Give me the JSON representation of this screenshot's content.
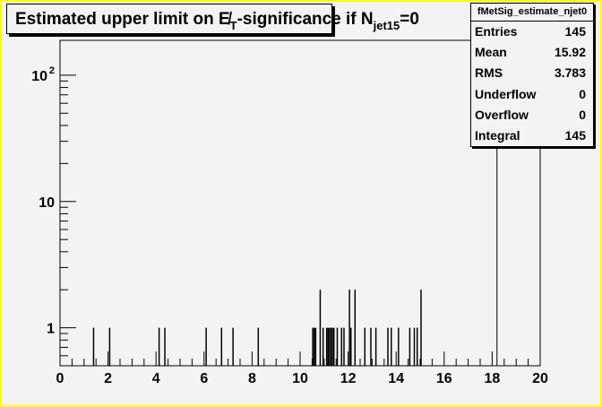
{
  "title": {
    "main": "Estimated upper limit on E̸",
    "sub1": "T",
    "mid": "-significance if N",
    "sub2": "jet15",
    "tail": "=0"
  },
  "stats": {
    "name": "fMetSig_estimate_njet0",
    "rows": [
      {
        "label": "Entries",
        "value": "145"
      },
      {
        "label": "Mean",
        "value": "15.92"
      },
      {
        "label": "RMS",
        "value": "3.783"
      },
      {
        "label": "Underflow",
        "value": "0"
      },
      {
        "label": "Overflow",
        "value": "0"
      },
      {
        "label": "Integral",
        "value": "145"
      }
    ]
  },
  "colors": {
    "canvas_border": "#ffff00",
    "background": "#f3f3f3",
    "line": "#000000"
  },
  "chart_data": {
    "type": "bar",
    "title": "Estimated upper limit on E̸T-significance if Njet15=0",
    "xlabel": "",
    "ylabel": "",
    "xlim": [
      0,
      20
    ],
    "ylim": [
      0.5,
      189
    ],
    "yscale": "log",
    "grid": false,
    "x_ticks": [
      "0",
      "2",
      "4",
      "6",
      "8",
      "10",
      "12",
      "14",
      "16",
      "18",
      "20"
    ],
    "y_ticks": [
      {
        "value": 1,
        "label": "1"
      },
      {
        "value": 10,
        "label": "10"
      },
      {
        "value": 100,
        "label": "10^2"
      }
    ],
    "bins": [
      [
        1.37,
        1
      ],
      [
        2.04,
        1
      ],
      [
        4.1,
        1
      ],
      [
        4.34,
        1
      ],
      [
        6.06,
        1
      ],
      [
        6.7,
        1
      ],
      [
        7.18,
        1
      ],
      [
        8.23,
        1
      ],
      [
        10.5,
        1
      ],
      [
        10.56,
        1
      ],
      [
        10.62,
        1
      ],
      [
        10.81,
        2
      ],
      [
        10.93,
        1
      ],
      [
        11.08,
        1
      ],
      [
        11.14,
        1
      ],
      [
        11.2,
        1
      ],
      [
        11.26,
        1
      ],
      [
        11.32,
        1
      ],
      [
        11.38,
        1
      ],
      [
        11.52,
        1
      ],
      [
        11.7,
        1
      ],
      [
        11.8,
        1
      ],
      [
        12.03,
        2
      ],
      [
        12.09,
        1
      ],
      [
        12.26,
        2
      ],
      [
        12.67,
        1
      ],
      [
        12.92,
        1
      ],
      [
        13.13,
        1
      ],
      [
        13.63,
        1
      ],
      [
        13.77,
        1
      ],
      [
        14.07,
        1
      ],
      [
        14.54,
        1
      ],
      [
        14.73,
        1
      ],
      [
        14.85,
        1
      ],
      [
        15.01,
        2
      ]
    ],
    "wide_bin": {
      "x0": 18.2,
      "x1": 20,
      "value": 110
    }
  }
}
